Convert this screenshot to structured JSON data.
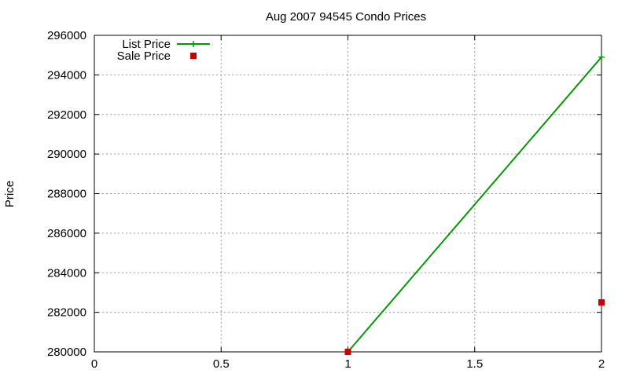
{
  "chart_data": {
    "type": "line",
    "title": "Aug 2007 94545 Condo Prices",
    "xlabel": "",
    "ylabel": "Price",
    "xlim": [
      0,
      2
    ],
    "ylim": [
      280000,
      296000
    ],
    "x_ticks": [
      0,
      0.5,
      1,
      1.5,
      2
    ],
    "x_tick_labels": [
      "0",
      "0.5",
      "1",
      "1.5",
      "2"
    ],
    "y_ticks": [
      280000,
      282000,
      284000,
      286000,
      288000,
      290000,
      292000,
      294000,
      296000
    ],
    "y_tick_labels": [
      "280000",
      "282000",
      "284000",
      "286000",
      "288000",
      "290000",
      "292000",
      "294000",
      "296000"
    ],
    "grid": true,
    "legend_position": "top-left",
    "series": [
      {
        "name": "List Price",
        "style": "linespoints",
        "marker": "plus",
        "color": "#009900",
        "x": [
          1,
          2
        ],
        "y": [
          280000,
          294900
        ]
      },
      {
        "name": "Sale Price",
        "style": "points",
        "marker": "square",
        "color": "#cc0000",
        "x": [
          1,
          2
        ],
        "y": [
          280000,
          282500
        ]
      }
    ]
  }
}
